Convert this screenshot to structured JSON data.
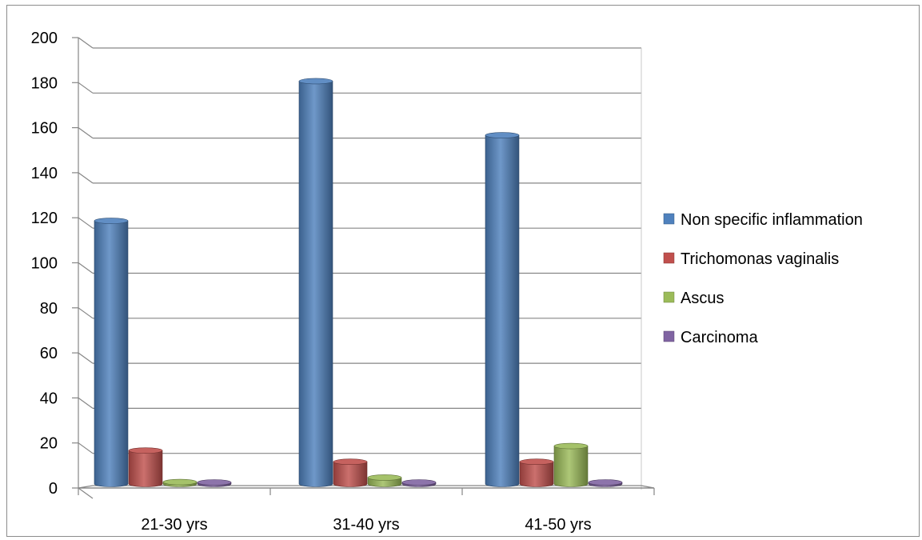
{
  "chart_data": {
    "type": "bar",
    "categories": [
      "21-30 yrs",
      "31-40 yrs",
      "41-50 yrs"
    ],
    "series": [
      {
        "name": "Non specific inflammation",
        "values": [
          119,
          181,
          157
        ],
        "color": "#4F81BD"
      },
      {
        "name": "Trichomonas vaginalis",
        "values": [
          17,
          12,
          12
        ],
        "color": "#C0504D"
      },
      {
        "name": "Ascus",
        "values": [
          3,
          5,
          19
        ],
        "color": "#9BBB59"
      },
      {
        "name": "Carcinoma",
        "values": [
          0,
          0,
          1
        ],
        "color": "#8064A2"
      }
    ],
    "ylim": [
      0,
      200
    ],
    "yticks": [
      0,
      20,
      40,
      60,
      80,
      100,
      120,
      140,
      160,
      180,
      200
    ],
    "grid": true,
    "legend": "right",
    "style": "3d-cylinder"
  }
}
